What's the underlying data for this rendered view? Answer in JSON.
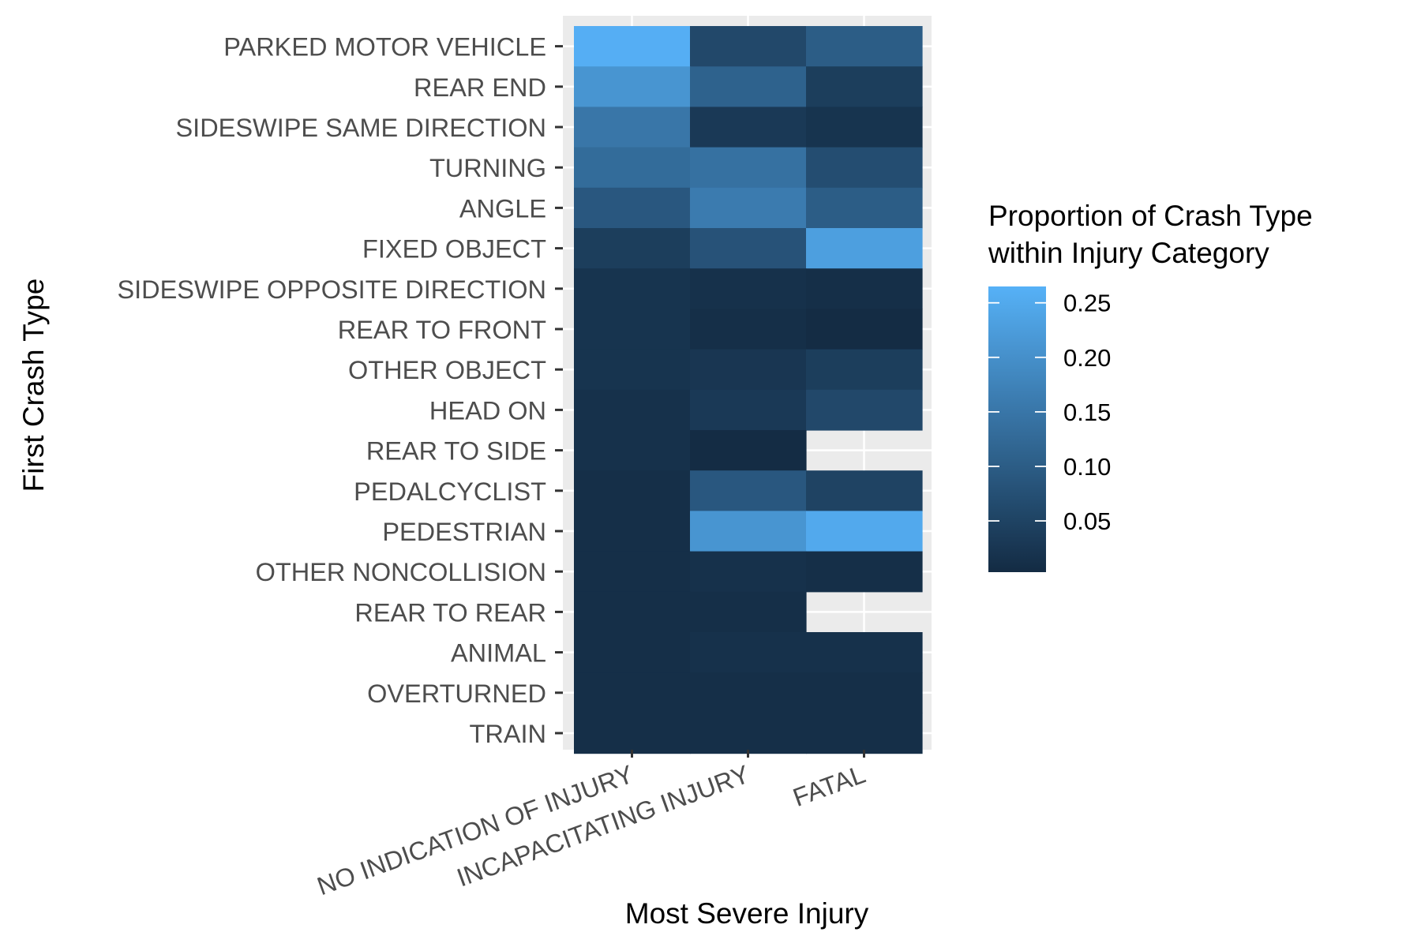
{
  "chart_data": {
    "type": "heatmap",
    "xlabel": "Most Severe Injury",
    "ylabel": "First Crash Type",
    "x_categories": [
      "NO INDICATION OF INJURY",
      "INCAPACITATING INJURY",
      "FATAL"
    ],
    "y_categories": [
      "PARKED MOTOR VEHICLE",
      "REAR END",
      "SIDESWIPE SAME DIRECTION",
      "TURNING",
      "ANGLE",
      "FIXED OBJECT",
      "SIDESWIPE OPPOSITE DIRECTION",
      "REAR TO FRONT",
      "OTHER OBJECT",
      "HEAD ON",
      "REAR TO SIDE",
      "PEDALCYCLIST",
      "PEDESTRIAN",
      "OTHER NONCOLLISION",
      "REAR TO REAR",
      "ANIMAL",
      "OVERTURNED",
      "TRAIN"
    ],
    "values": [
      [
        0.26,
        0.06,
        0.1
      ],
      [
        0.21,
        0.11,
        0.04
      ],
      [
        0.15,
        0.03,
        0.02
      ],
      [
        0.13,
        0.14,
        0.07
      ],
      [
        0.09,
        0.16,
        0.1
      ],
      [
        0.04,
        0.08,
        0.23
      ],
      [
        0.02,
        0.015,
        0.01
      ],
      [
        0.02,
        0.01,
        0.005
      ],
      [
        0.02,
        0.025,
        0.04
      ],
      [
        0.015,
        0.03,
        0.06
      ],
      [
        0.015,
        0.005,
        null
      ],
      [
        0.01,
        0.09,
        0.05
      ],
      [
        0.01,
        0.21,
        0.25
      ],
      [
        0.01,
        0.015,
        0.01
      ],
      [
        0.01,
        0.01,
        null
      ],
      [
        0.01,
        0.015,
        0.015
      ],
      [
        0.01,
        0.01,
        0.01
      ],
      [
        0.01,
        0.01,
        0.01
      ]
    ],
    "legend": {
      "title_lines": [
        "Proportion of Crash Type",
        "within Injury Category"
      ],
      "ticks": [
        0.05,
        0.1,
        0.15,
        0.2,
        0.25
      ],
      "tick_labels": [
        "0.05",
        "0.10",
        "0.15",
        "0.20",
        "0.25"
      ],
      "range": [
        0.003,
        0.265
      ],
      "low_color": "#132B43",
      "high_color": "#56B1F7",
      "placement": "right"
    },
    "panel_background": "#EBEBEB",
    "grid_color": "#FFFFFF"
  }
}
